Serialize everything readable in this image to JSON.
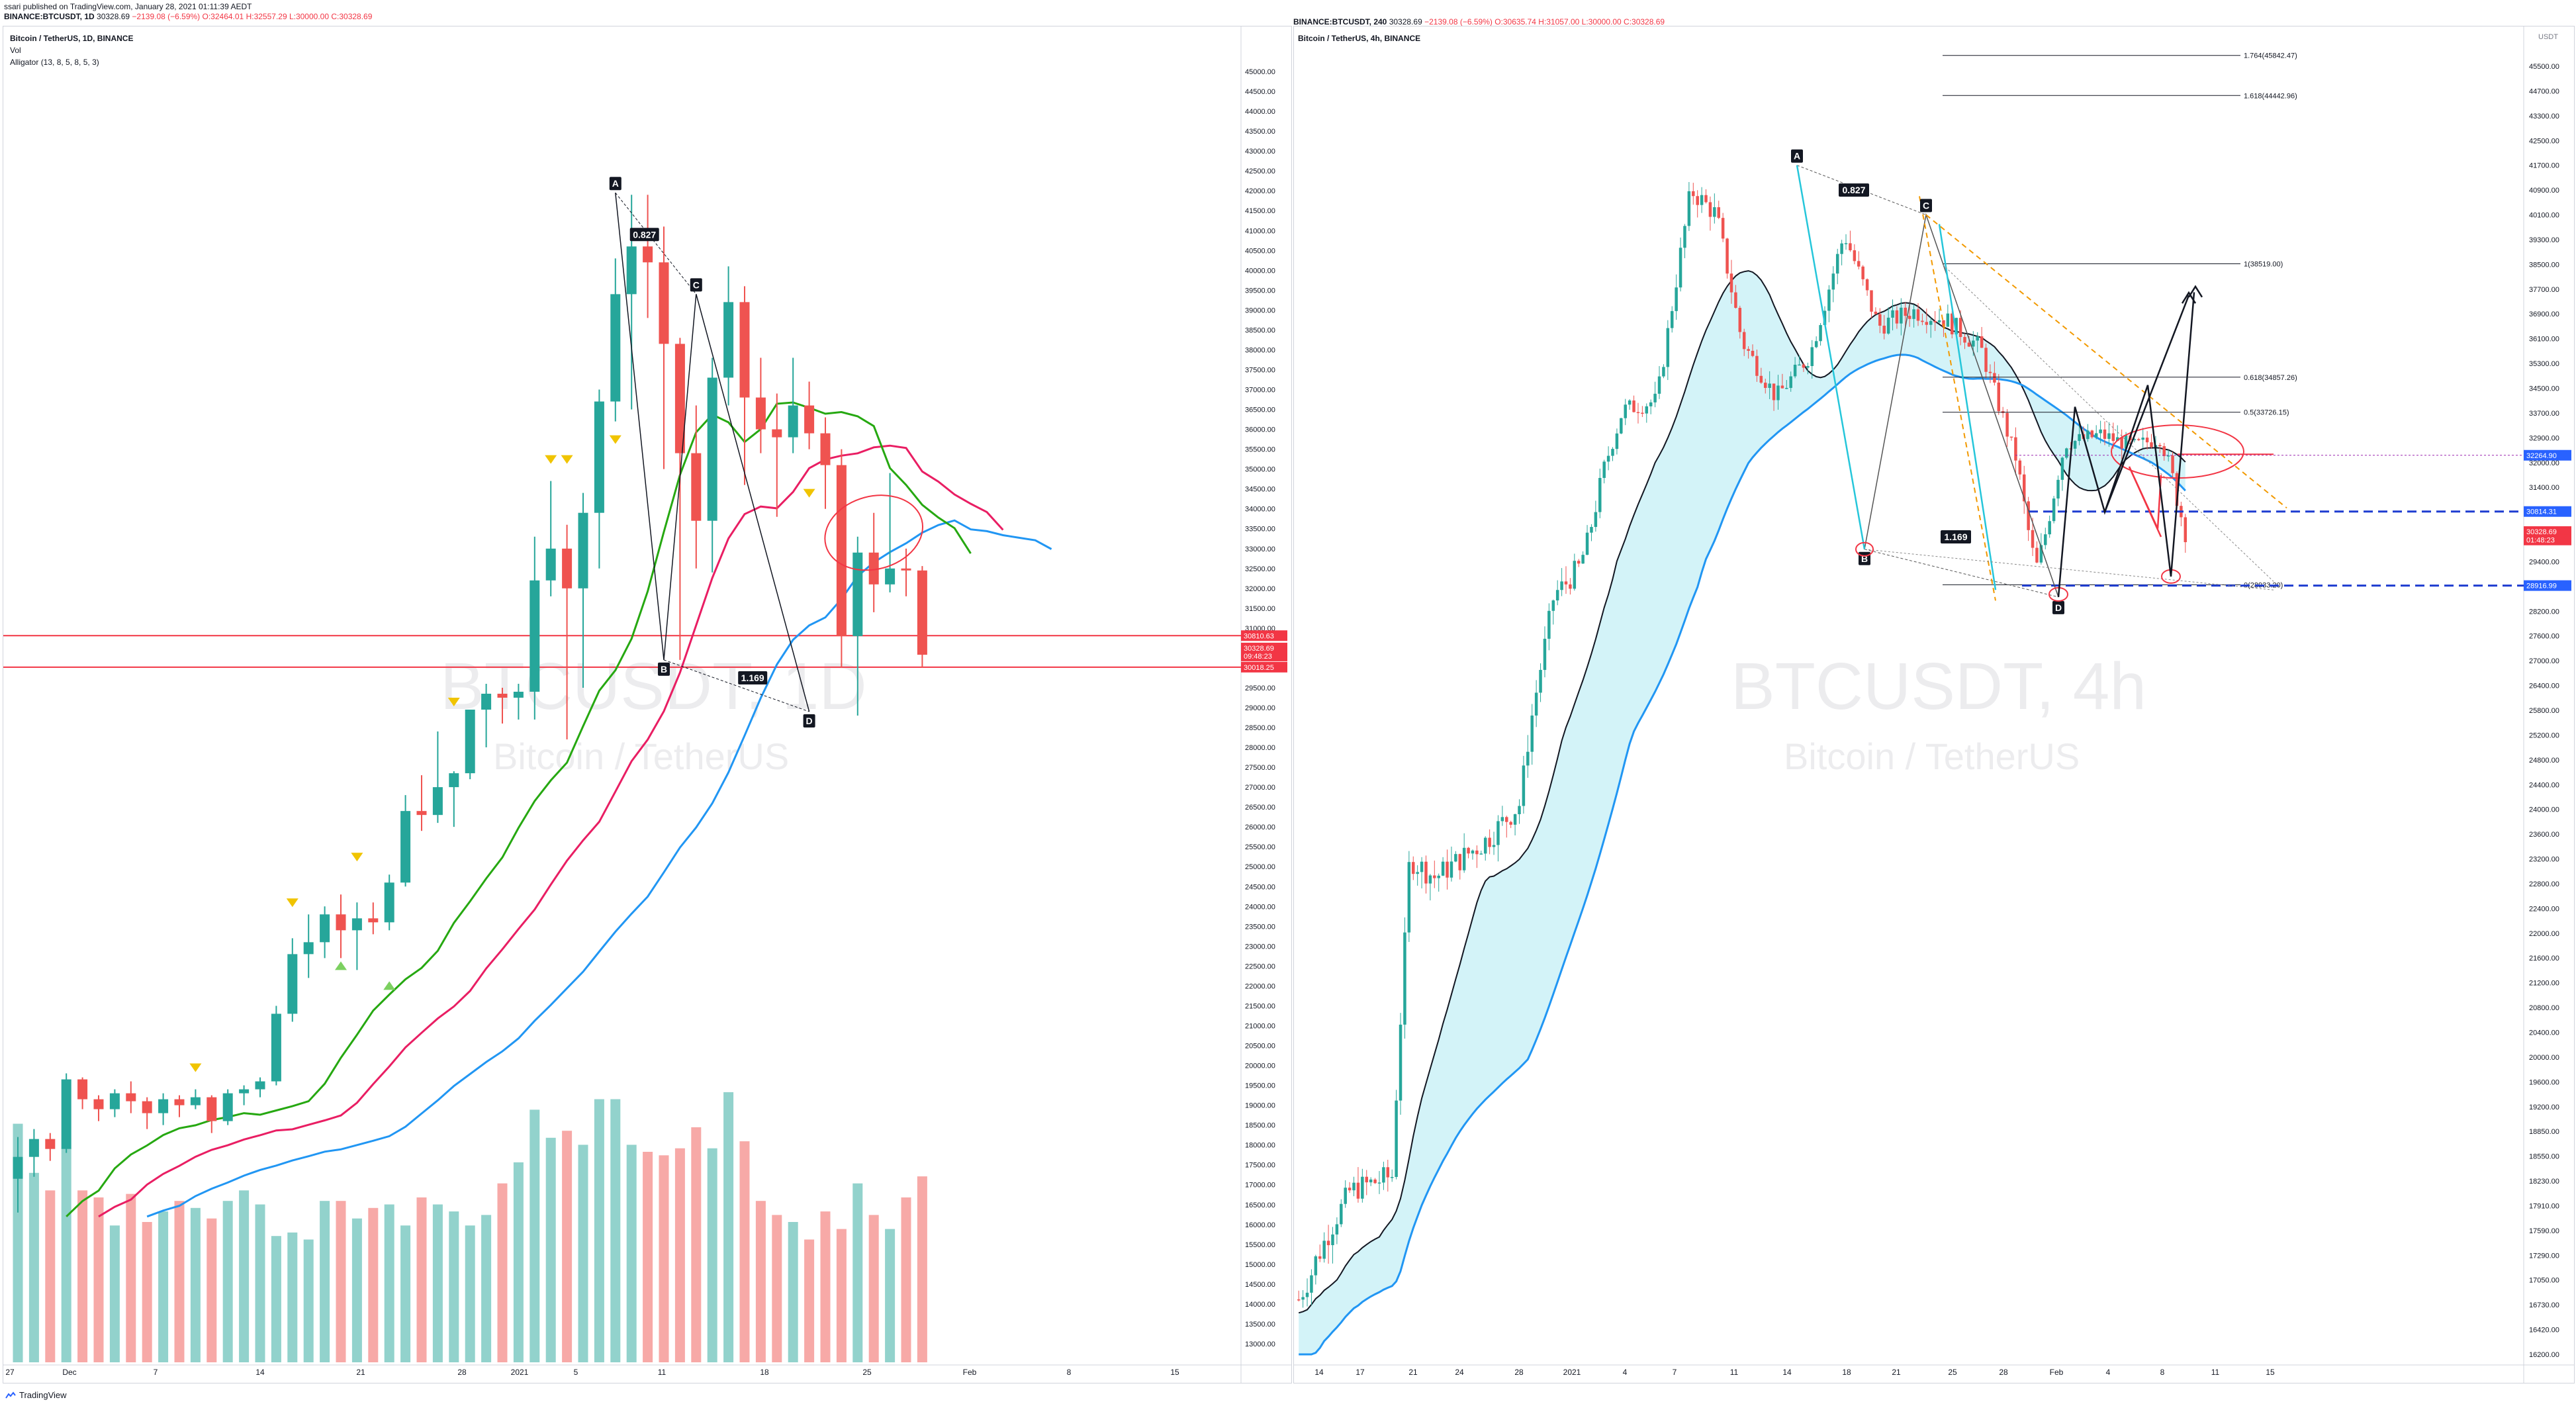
{
  "header": {
    "line1": "ssari published on TradingView.com, January 28, 2021 01:11:39 AEDT",
    "symbol": "BINANCE:BTCUSDT, 1D",
    "price": "30328.69",
    "change": "−2139.08 (−6.59%)",
    "ohlc": "O:32464.01 H:32557.29 L:30000.00 C:30328.69"
  },
  "left_panel": {
    "title": "Bitcoin / TetherUS, 1D, BINANCE",
    "vol_label": "Vol",
    "alligator_label": "Alligator (13, 8, 5, 8, 5, 3)",
    "watermark_symbol": "BTCUSDT, 1D",
    "watermark_name": "Bitcoin / TetherUS",
    "price_tags": [
      {
        "text": "30810.63",
        "color": "#f23645"
      },
      {
        "text": "30328.69",
        "color": "#f23645"
      },
      {
        "text": "09:48:23",
        "color": "#f23645"
      },
      {
        "text": "30018.25",
        "color": "#f23645"
      }
    ]
  },
  "right_panel": {
    "symbol_line": "BINANCE:BTCUSDT, 240",
    "price": "30328.69",
    "change": "−2139.08 (−6.59%)",
    "ohlc": "O:30635.74 H:31057.00 L:30000.00 C:30328.69",
    "title": "Bitcoin / TetherUS, 4h, BINANCE",
    "watermark_symbol": "BTCUSDT, 4h",
    "watermark_name": "Bitcoin / TetherUS",
    "fib_labels": [
      "1.764(45842.47)",
      "1.618(44442.96)",
      "1(38519.00)",
      "0.618(34857.26)",
      "0.5(33726.15)",
      "0(28933.20)"
    ],
    "price_tags": [
      {
        "text": "32264.90",
        "color": "#2962ff"
      },
      {
        "text": "30814.31",
        "color": "#2962ff"
      },
      {
        "text": "30328.69",
        "color": "#f23645"
      },
      {
        "text": "01:48:23",
        "color": "#f23645"
      },
      {
        "text": "28916.99",
        "color": "#2962ff"
      }
    ],
    "usdt_label": "USDT"
  },
  "pattern_labels": {
    "a": "A",
    "b": "B",
    "c": "C",
    "d": "D",
    "r1": "0.827",
    "r2": "1.169"
  },
  "footer": {
    "brand": "TradingView"
  },
  "chart_data": [
    {
      "type": "candlestick",
      "title": "Bitcoin / TetherUS, 1D, BINANCE",
      "ylim": [
        12500,
        45500
      ],
      "y_ticks": [
        13000,
        13500,
        14000,
        14500,
        15000,
        15500,
        16000,
        16500,
        17000,
        17500,
        18000,
        18500,
        19000,
        19500,
        20000,
        20500,
        21000,
        21500,
        22000,
        22500,
        23000,
        23500,
        24000,
        24500,
        25000,
        25500,
        26000,
        26500,
        27000,
        27500,
        28000,
        28500,
        29000,
        29500,
        30000,
        30500,
        31000,
        31500,
        32000,
        32500,
        33000,
        33500,
        34000,
        34500,
        35000,
        35500,
        36000,
        36500,
        37000,
        37500,
        38000,
        38500,
        39000,
        39500,
        40000,
        40500,
        41000,
        41500,
        42000,
        42500,
        43000,
        43500,
        44000,
        44500,
        45000
      ],
      "x_ticks": [
        "27",
        "Dec",
        "7",
        "14",
        "21",
        "28",
        "2021",
        "5",
        "11",
        "18",
        "25",
        "Feb",
        "8",
        "15"
      ],
      "candles": [
        [
          17150,
          18200,
          16300,
          17700
        ],
        [
          17700,
          18400,
          17200,
          18150
        ],
        [
          18150,
          18300,
          17600,
          17900
        ],
        [
          17900,
          19800,
          17800,
          19650
        ],
        [
          19650,
          19700,
          18900,
          19150
        ],
        [
          19150,
          19250,
          18600,
          18900
        ],
        [
          18900,
          19400,
          18700,
          19300
        ],
        [
          19300,
          19600,
          18800,
          19100
        ],
        [
          19100,
          19200,
          18400,
          18800
        ],
        [
          18800,
          19300,
          18500,
          19150
        ],
        [
          19150,
          19250,
          18700,
          19000
        ],
        [
          19000,
          19400,
          18900,
          19200
        ],
        [
          19200,
          19250,
          18300,
          18600
        ],
        [
          18600,
          19400,
          18500,
          19300
        ],
        [
          19300,
          19500,
          19000,
          19400
        ],
        [
          19400,
          19700,
          19200,
          19600
        ],
        [
          19600,
          21500,
          19500,
          21300
        ],
        [
          21300,
          23200,
          21100,
          22800
        ],
        [
          22800,
          23800,
          22200,
          23100
        ],
        [
          23100,
          24000,
          22700,
          23800
        ],
        [
          23800,
          24300,
          22700,
          23400
        ],
        [
          23400,
          24100,
          22400,
          23700
        ],
        [
          23700,
          24100,
          23300,
          23600
        ],
        [
          23600,
          24800,
          23400,
          24600
        ],
        [
          24600,
          26800,
          24500,
          26400
        ],
        [
          26400,
          27300,
          25900,
          26300
        ],
        [
          26300,
          28400,
          26100,
          27000
        ],
        [
          27000,
          27400,
          26000,
          27350
        ],
        [
          27350,
          28900,
          27200,
          28950
        ],
        [
          28950,
          29600,
          28000,
          29350
        ],
        [
          29350,
          29500,
          28600,
          29250
        ],
        [
          29250,
          29600,
          28700,
          29400
        ],
        [
          29400,
          33300,
          28700,
          32200
        ],
        [
          32200,
          34700,
          31800,
          33000
        ],
        [
          33000,
          33600,
          28200,
          32000
        ],
        [
          32000,
          34400,
          29500,
          33900
        ],
        [
          33900,
          37000,
          32500,
          36700
        ],
        [
          36700,
          40300,
          36200,
          39400
        ],
        [
          39400,
          41900,
          36500,
          40600
        ],
        [
          40600,
          41900,
          38800,
          40200
        ],
        [
          40200,
          41100,
          35000,
          38150
        ],
        [
          38150,
          38300,
          30200,
          35400
        ],
        [
          35400,
          36600,
          32500,
          33700
        ],
        [
          33700,
          37800,
          32400,
          37300
        ],
        [
          37300,
          40100,
          36600,
          39200
        ],
        [
          39200,
          39600,
          34600,
          36800
        ],
        [
          36800,
          37800,
          35400,
          36000
        ],
        [
          36000,
          36900,
          33800,
          35800
        ],
        [
          35800,
          37800,
          35400,
          36600
        ],
        [
          36600,
          37200,
          35500,
          35900
        ],
        [
          35900,
          36300,
          34000,
          35100
        ],
        [
          35100,
          35500,
          30000,
          30800
        ],
        [
          30800,
          33300,
          28800,
          32900
        ],
        [
          32900,
          33900,
          31400,
          32100
        ],
        [
          32100,
          34900,
          31900,
          32500
        ],
        [
          32500,
          33000,
          31800,
          32450
        ],
        [
          32450,
          32560,
          30000,
          30330
        ]
      ],
      "volume_series": [
        {
          "name": "Vol",
          "values": [
            68,
            54,
            49,
            61,
            49,
            47,
            39,
            48,
            40,
            43,
            46,
            44,
            41,
            46,
            49,
            45,
            36,
            37,
            35,
            46,
            46,
            41,
            44,
            45,
            39,
            47,
            45,
            43,
            39,
            42,
            51,
            57,
            72,
            64,
            66,
            62,
            75,
            75,
            62,
            60,
            59,
            61,
            67,
            61,
            77,
            63,
            46,
            42,
            40,
            35,
            43,
            38,
            51,
            42,
            38,
            47,
            53
          ]
        }
      ],
      "alligator": [
        {
          "name": "Jaw",
          "color": "#2196f3"
        },
        {
          "name": "Teeth",
          "color": "#e91e63"
        },
        {
          "name": "Lips",
          "color": "#26a811"
        }
      ],
      "annotations": [
        "A",
        "0.827",
        "C",
        "B",
        "1.169",
        "D"
      ],
      "horizontal_levels": [
        30810.63,
        30018.25
      ]
    },
    {
      "type": "candlestick",
      "title": "Bitcoin / TetherUS, 4h, BINANCE",
      "ylim": [
        16200,
        46300
      ],
      "y_ticks": [
        16200,
        16420,
        16730,
        17050,
        17290,
        17590,
        17910,
        18230,
        18550,
        18850,
        19200,
        19600,
        20000,
        20400,
        20800,
        21200,
        21600,
        22000,
        22400,
        22800,
        23200,
        23600,
        24000,
        24400,
        24800,
        25200,
        25800,
        26400,
        27000,
        27600,
        28200,
        28900,
        29400,
        30200,
        30800,
        31400,
        32000,
        32900,
        33700,
        34500,
        35300,
        36100,
        36900,
        37700,
        38500,
        39300,
        40100,
        40900,
        41700,
        42500,
        43300,
        44700,
        45500
      ],
      "x_ticks": [
        "14",
        "17",
        "21",
        "24",
        "28",
        "2021",
        "4",
        "7",
        "11",
        "14",
        "18",
        "21",
        "25",
        "28",
        "Feb",
        "4",
        "8",
        "11",
        "15"
      ],
      "fib_levels": [
        {
          "label": "1.764(45842.47)",
          "value": 45842.47
        },
        {
          "label": "1.618(44442.96)",
          "value": 44442.96
        },
        {
          "label": "1(38519.00)",
          "value": 38519.0
        },
        {
          "label": "0.618(34857.26)",
          "value": 34857.26
        },
        {
          "label": "0.5(33726.15)",
          "value": 33726.15
        },
        {
          "label": "0(28933.20)",
          "value": 28933.2
        }
      ],
      "horizontal_levels": [
        32264.9,
        30814.31,
        28916.99
      ],
      "current_price": 30328.69,
      "annotations": [
        "A",
        "0.827",
        "C",
        "B",
        "1.169",
        "D"
      ]
    }
  ]
}
